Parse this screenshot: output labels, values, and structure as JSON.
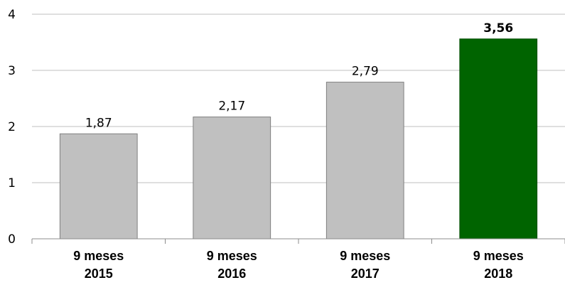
{
  "chart_data": {
    "type": "bar",
    "categories": [
      [
        "9 meses",
        "2015"
      ],
      [
        "9 meses",
        "2016"
      ],
      [
        "9 meses",
        "2017"
      ],
      [
        "9 meses",
        "2018"
      ]
    ],
    "values": [
      1.87,
      2.17,
      2.79,
      3.56
    ],
    "value_labels": [
      "1,87",
      "2,17",
      "2,79",
      "3,56"
    ],
    "highlight_index": 3,
    "ylim": [
      0,
      4
    ],
    "yticks": [
      0,
      1,
      2,
      3,
      4
    ],
    "ytick_labels": [
      "0",
      "1",
      "2",
      "3",
      "4"
    ],
    "grid": true,
    "legend": "none",
    "colors": {
      "bar": "#c0c0c0",
      "bar_border": "#7f7f7f",
      "highlight_bar": "#006400",
      "highlight_border": "#004d00",
      "grid": "#bfbfbf",
      "axis": "#8c8c8c"
    }
  }
}
